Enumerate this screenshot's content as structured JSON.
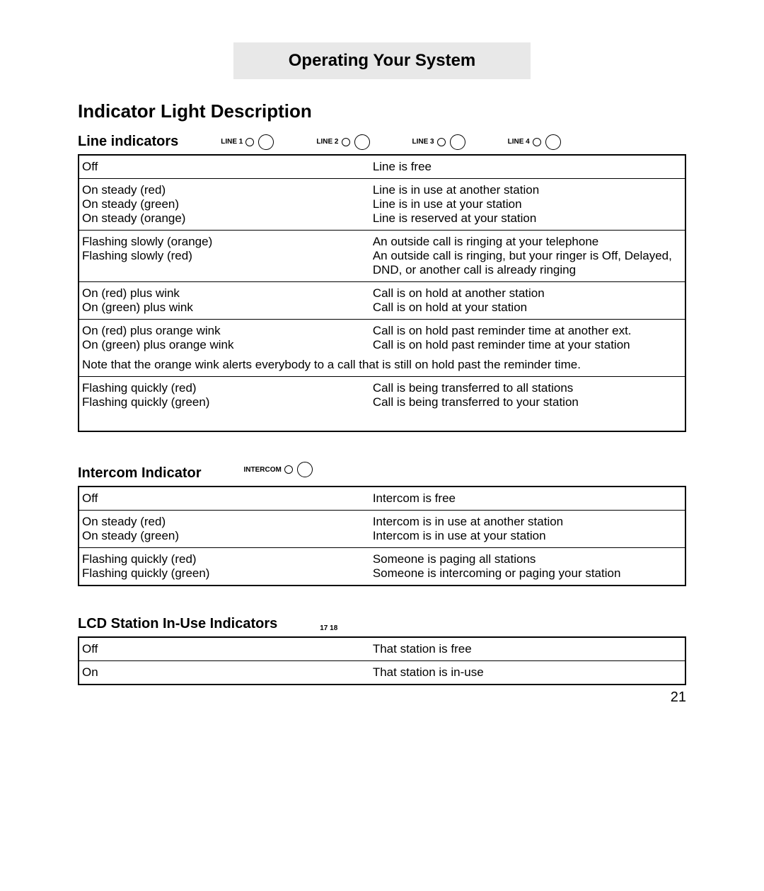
{
  "banner": "Operating Your System",
  "h1": "Indicator Light Description",
  "pagenum": "21",
  "lineIndicators": {
    "heading": "Line indicators",
    "labels": [
      "LINE 1",
      "LINE 2",
      "LINE 3",
      "LINE 4"
    ],
    "rows": [
      {
        "left": [
          "Off"
        ],
        "right": [
          "Line is free"
        ]
      },
      {
        "left": [
          "On steady (red)",
          "On steady (green)",
          "On steady (orange)"
        ],
        "right": [
          "Line is in use at another station",
          "Line is in use at your station",
          "Line is reserved at your station"
        ]
      },
      {
        "left": [
          "Flashing slowly (orange)",
          "Flashing slowly (red)"
        ],
        "right": [
          "An outside call is ringing at your telephone",
          "An outside call is ringing, but your ringer is Off, Delayed, DND, or another call is already ringing"
        ]
      },
      {
        "left": [
          "On (red) plus wink",
          "On (green) plus wink"
        ],
        "right": [
          "Call is on hold at another station",
          "Call is on hold at your station"
        ]
      },
      {
        "left": [
          "On (red) plus orange wink",
          "On (green) plus orange wink"
        ],
        "right": [
          "Call is on hold past reminder time at another ext.",
          "Call is on hold past reminder time at your station"
        ],
        "note": "Note that the orange wink alerts everybody to a call that is still on hold past the reminder time."
      },
      {
        "left": [
          "Flashing quickly (red)",
          "Flashing quickly (green)"
        ],
        "right": [
          "Call is being transferred to all stations",
          "Call is being transferred to your station"
        ],
        "extraPad": true
      }
    ]
  },
  "intercom": {
    "heading": "Intercom Indicator",
    "label": "INTERCOM",
    "rows": [
      {
        "left": [
          "Off"
        ],
        "right": [
          "Intercom is free"
        ]
      },
      {
        "left": [
          "On steady (red)",
          "On steady (green)"
        ],
        "right": [
          "Intercom is in use at another station",
          "Intercom is in use at your station"
        ]
      },
      {
        "left": [
          "Flashing quickly (red)",
          "Flashing quickly (green)"
        ],
        "right": [
          "Someone is paging all stations",
          "Someone is intercoming or paging your station"
        ]
      }
    ]
  },
  "lcd": {
    "heading": "LCD Station In-Use Indicators",
    "label": "17  18",
    "rows": [
      {
        "left": [
          "Off"
        ],
        "right": [
          "That station is free"
        ]
      },
      {
        "left": [
          "On"
        ],
        "right": [
          "That station is in-use"
        ]
      }
    ]
  }
}
